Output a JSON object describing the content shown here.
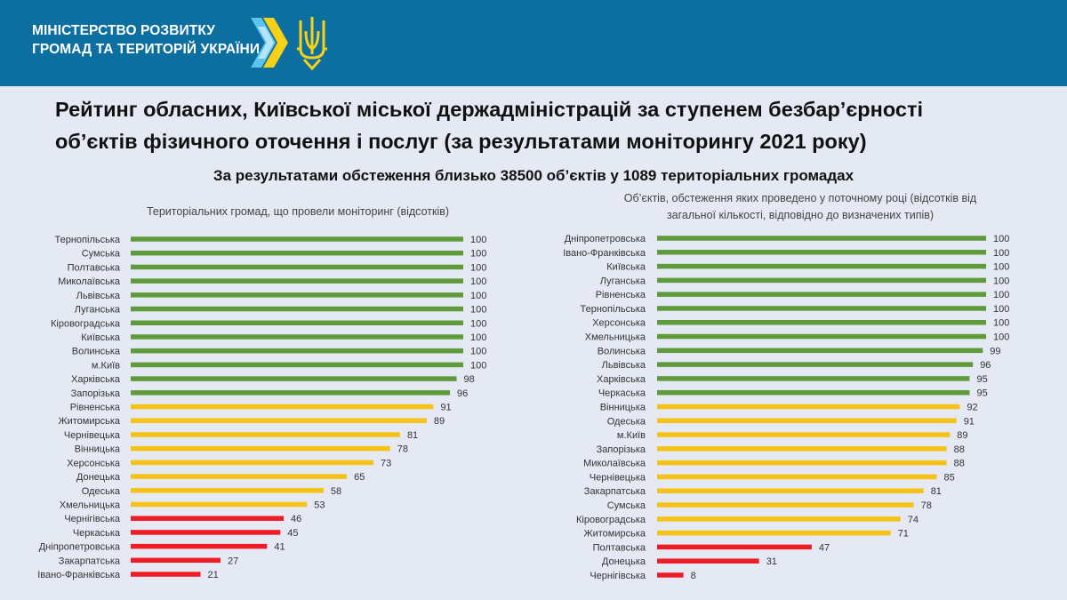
{
  "header": {
    "ministry_line1": "МІНІСТЕРСТВО РОЗВИТКУ",
    "ministry_line2": "ГРОМАД ТА ТЕРИТОРІЙ  УКРАЇНИ"
  },
  "title_line1": "Рейтинг обласних, Київської міської держадміністрацій за ступенем безбар’єрності",
  "title_line2": "об’єктів фізичного оточення і послуг (за результатами моніторингу 2021 року)",
  "subtitle": "За результатами обстеження близько 38500 об’єктів у 1089 територіальних громадах",
  "colors": {
    "green": "#5f9b3b",
    "yellow": "#f7c216",
    "red": "#ee1c25",
    "header": "#0d6fa0"
  },
  "chart_data": [
    {
      "type": "bar",
      "orientation": "horizontal",
      "title": "Територіальних громад, що провели моніторинг (відсотків)",
      "categories": [
        "Тернопільська",
        "Сумська",
        "Полтавська",
        "Миколаївська",
        "Львівська",
        "Луганська",
        "Кіровоградська",
        "Київська",
        "Волинська",
        "м.Київ",
        "Харківська",
        "Запорізька",
        "Рівненська",
        "Житомирська",
        "Чернівецька",
        "Вінницька",
        "Херсонська",
        "Донецька",
        "Одеська",
        "Хмельницька",
        "Чернігівська",
        "Черкаська",
        "Дніпропетровська",
        "Закарпатська",
        "Івано-Франківська"
      ],
      "values": [
        100,
        100,
        100,
        100,
        100,
        100,
        100,
        100,
        100,
        100,
        98,
        96,
        91,
        89,
        81,
        78,
        73,
        65,
        58,
        53,
        46,
        45,
        41,
        27,
        21
      ],
      "colors": [
        "green",
        "green",
        "green",
        "green",
        "green",
        "green",
        "green",
        "green",
        "green",
        "green",
        "green",
        "green",
        "yellow",
        "yellow",
        "yellow",
        "yellow",
        "yellow",
        "yellow",
        "yellow",
        "yellow",
        "red",
        "red",
        "red",
        "red",
        "red"
      ],
      "xlim": [
        0,
        100
      ]
    },
    {
      "type": "bar",
      "orientation": "horizontal",
      "title_line1": "Об’єктів, обстеження яких проведено у поточному році (відсотків від",
      "title_line2": "загальної кількості, відповідно до визначених типів)",
      "categories": [
        "Дніпропетровська",
        "Івано-Франківська",
        "Київська",
        "Луганська",
        "Рівненська",
        "Тернопільська",
        "Херсонська",
        "Хмельницька",
        "Волинська",
        "Львівська",
        "Харківська",
        "Черкаська",
        "Вінницька",
        "Одеська",
        "м.Київ",
        "Запорізька",
        "Миколаївська",
        "Чернівецька",
        "Закарпатська",
        "Сумська",
        "Кіровоградська",
        "Житомирська",
        "Полтавська",
        "Донецька",
        "Чернігівська"
      ],
      "values": [
        100,
        100,
        100,
        100,
        100,
        100,
        100,
        100,
        99,
        96,
        95,
        95,
        92,
        91,
        89,
        88,
        88,
        85,
        81,
        78,
        74,
        71,
        47,
        31,
        8
      ],
      "colors": [
        "green",
        "green",
        "green",
        "green",
        "green",
        "green",
        "green",
        "green",
        "green",
        "green",
        "green",
        "green",
        "yellow",
        "yellow",
        "yellow",
        "yellow",
        "yellow",
        "yellow",
        "yellow",
        "yellow",
        "yellow",
        "yellow",
        "red",
        "red",
        "red"
      ],
      "xlim": [
        0,
        100
      ]
    }
  ]
}
